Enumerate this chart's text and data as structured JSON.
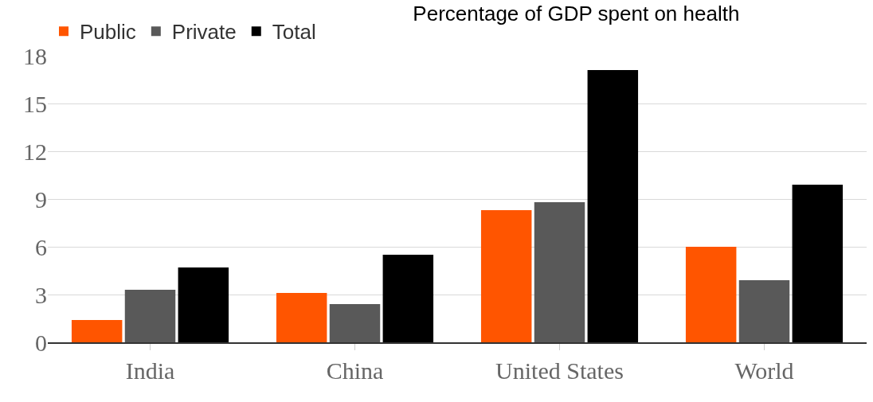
{
  "chart_data": {
    "type": "bar",
    "title": "Percentage of GDP spent on health",
    "categories": [
      "India",
      "China",
      "United States",
      "World"
    ],
    "series": [
      {
        "name": "Public",
        "color": "#ff5500",
        "values": [
          1.4,
          3.1,
          8.3,
          6.0
        ]
      },
      {
        "name": "Private",
        "color": "#595959",
        "values": [
          3.3,
          2.4,
          8.8,
          3.9
        ]
      },
      {
        "name": "Total",
        "color": "#000000",
        "values": [
          4.7,
          5.5,
          17.1,
          9.9
        ]
      }
    ],
    "ylim": [
      0,
      18
    ],
    "yticks": [
      0,
      3,
      6,
      9,
      12,
      15,
      18
    ],
    "grid": "y",
    "legend": "top left"
  }
}
